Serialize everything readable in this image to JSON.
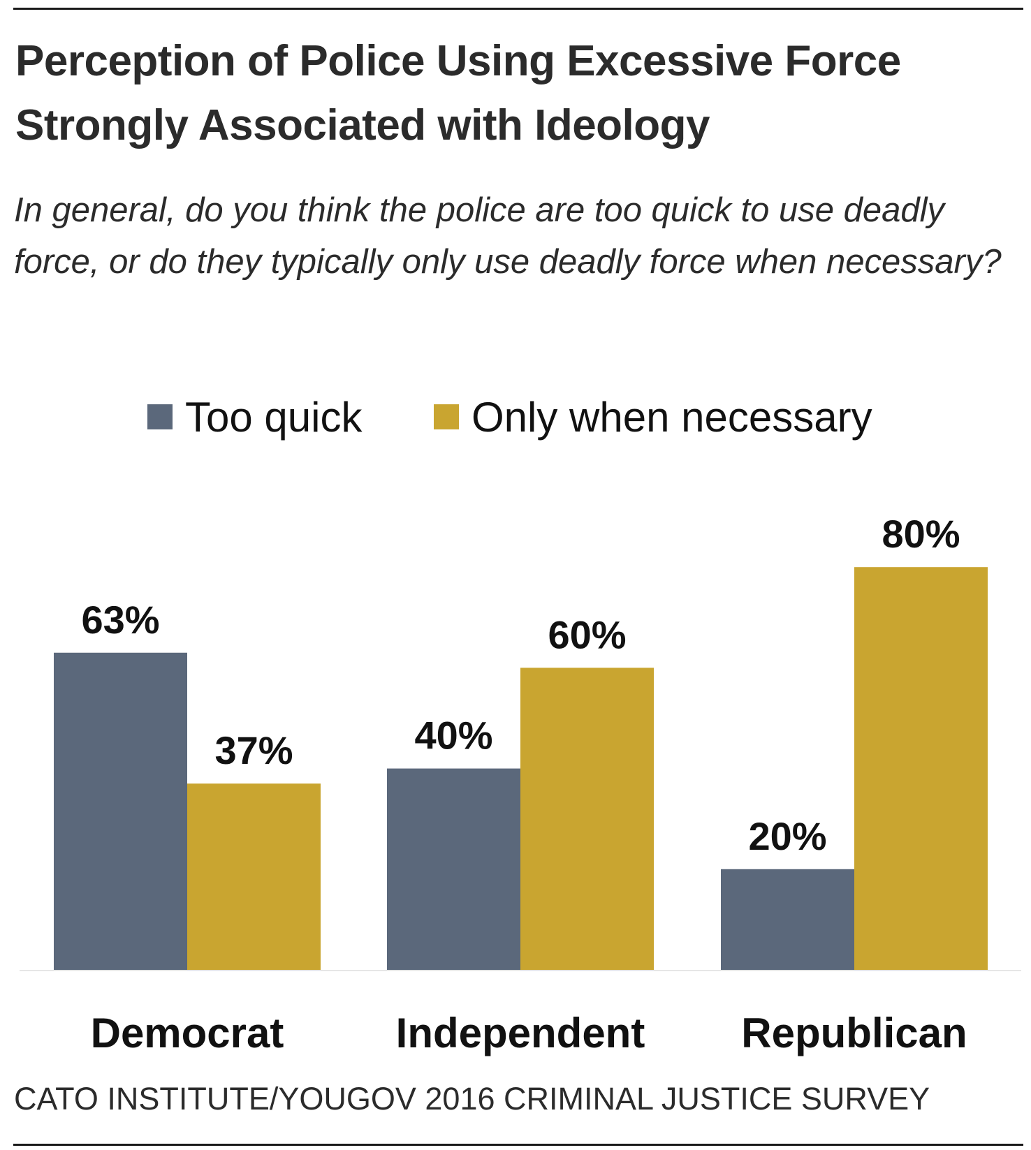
{
  "chart_data": {
    "type": "bar",
    "title": "Perception of Police Using Excessive Force Strongly Associated with Ideology",
    "subtitle": "In general, do you think the police are too quick to use deadly force, or do they typically only use deadly force when necessary?",
    "categories": [
      "Democrat",
      "Independent",
      "Republican"
    ],
    "series": [
      {
        "name": "Too quick",
        "values": [
          63,
          40,
          20
        ],
        "labels": [
          "63%",
          "40%",
          "20%"
        ],
        "color": "#5b687b"
      },
      {
        "name": "Only when necessary",
        "values": [
          37,
          60,
          80
        ],
        "labels": [
          "37%",
          "60%",
          "80%"
        ],
        "color": "#c9a530"
      }
    ],
    "xlabel": "",
    "ylabel": "",
    "ylim": [
      0,
      100
    ],
    "grid": false,
    "legend": "top-center",
    "source": "CATO INSTITUTE/YOUGOV 2016 CRIMINAL JUSTICE SURVEY"
  }
}
